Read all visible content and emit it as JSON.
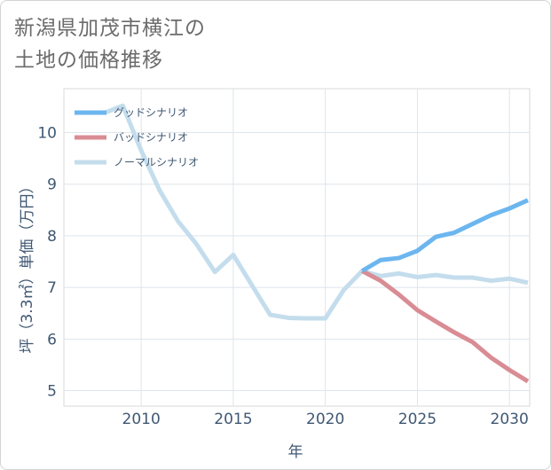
{
  "chart_data": {
    "type": "line",
    "title": "新潟県加茂市横江の土地の価格推移",
    "title_lines": [
      "新潟県加茂市横江の",
      "土地の価格推移"
    ],
    "xlabel": "年",
    "ylabel": "坪（3.3㎡）単価（万円）",
    "xlim": [
      2005.8,
      2031.1
    ],
    "ylim": [
      4.7,
      10.85
    ],
    "x_ticks": [
      2010,
      2015,
      2020,
      2025,
      2030
    ],
    "y_ticks": [
      5,
      6,
      7,
      8,
      9,
      10
    ],
    "grid": true,
    "legend_position": "top-left",
    "series": [
      {
        "name": "グッドシナリオ",
        "color": "#6cb6ef",
        "x": [
          2022,
          2023,
          2024,
          2025,
          2026,
          2027,
          2028,
          2029,
          2030,
          2031
        ],
        "values": [
          7.32,
          7.53,
          7.57,
          7.71,
          7.98,
          8.06,
          8.23,
          8.4,
          8.53,
          8.69
        ]
      },
      {
        "name": "バッドシナリオ",
        "color": "#d98c94",
        "x": [
          2022,
          2023,
          2024,
          2025,
          2026,
          2027,
          2028,
          2029,
          2030,
          2031
        ],
        "values": [
          7.32,
          7.13,
          6.86,
          6.56,
          6.34,
          6.13,
          5.94,
          5.64,
          5.4,
          5.18
        ]
      },
      {
        "name": "ノーマルシナリオ",
        "color": "#c4dded",
        "x": [
          2008,
          2009,
          2010,
          2011,
          2012,
          2013,
          2014,
          2015,
          2016,
          2017,
          2018,
          2019,
          2020,
          2021,
          2022,
          2023,
          2024,
          2025,
          2026,
          2027,
          2028,
          2029,
          2030,
          2031
        ],
        "values": [
          10.38,
          10.52,
          9.65,
          8.88,
          8.28,
          7.84,
          7.3,
          7.63,
          7.05,
          6.47,
          6.41,
          6.4,
          6.4,
          6.95,
          7.32,
          7.22,
          7.27,
          7.2,
          7.24,
          7.19,
          7.19,
          7.13,
          7.17,
          7.09
        ]
      }
    ]
  }
}
